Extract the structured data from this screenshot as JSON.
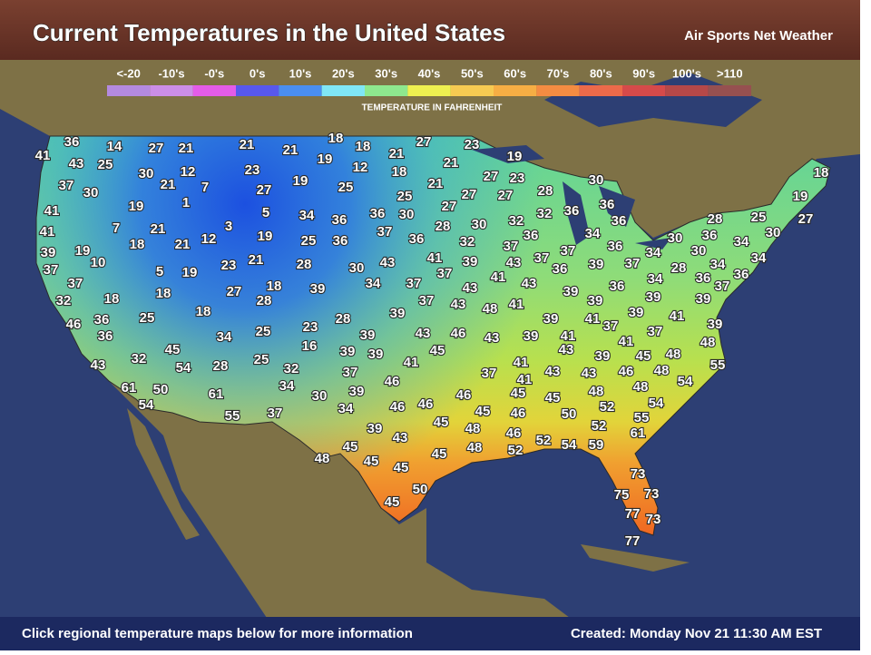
{
  "header": {
    "title": "Current Temperatures in the United States",
    "brand": "Air Sports Net Weather"
  },
  "legend": {
    "title": "TEMPERATURE IN FAHRENHEIT",
    "items": [
      {
        "label": "<-20",
        "color": "#b48ae0"
      },
      {
        "label": "-10's",
        "color": "#cc8ee8"
      },
      {
        "label": "-0's",
        "color": "#e45ce8"
      },
      {
        "label": "0's",
        "color": "#5858ec"
      },
      {
        "label": "10's",
        "color": "#4a8ef0"
      },
      {
        "label": "20's",
        "color": "#80e6f6"
      },
      {
        "label": "30's",
        "color": "#8ee88e"
      },
      {
        "label": "40's",
        "color": "#eef050"
      },
      {
        "label": "50's",
        "color": "#f6ca52"
      },
      {
        "label": "60's",
        "color": "#f6ae44"
      },
      {
        "label": "70's",
        "color": "#f48c42"
      },
      {
        "label": "80's",
        "color": "#ec6a4a"
      },
      {
        "label": "90's",
        "color": "#d64a4a"
      },
      {
        "label": "100's",
        "color": "#b64848"
      },
      {
        "label": ">110",
        "color": "#965050"
      }
    ]
  },
  "map": {
    "temperatures": [
      41,
      36,
      14,
      27,
      21,
      21,
      21,
      18,
      18,
      21,
      27,
      23,
      19,
      43,
      25,
      30,
      12,
      23,
      19,
      12,
      18,
      21,
      37,
      30,
      21,
      7,
      27,
      19,
      25,
      21,
      27,
      23,
      30,
      18,
      41,
      19,
      1,
      5,
      34,
      36,
      36,
      30,
      25,
      27,
      27,
      27,
      28,
      36,
      19,
      41,
      7,
      21,
      3,
      12,
      19,
      25,
      36,
      37,
      36,
      28,
      30,
      32,
      32,
      36,
      36,
      28,
      25,
      27,
      39,
      19,
      18,
      21,
      32,
      37,
      36,
      34,
      36,
      30,
      36,
      30,
      34,
      37,
      10,
      21,
      23,
      28,
      30,
      43,
      41,
      39,
      43,
      37,
      37,
      39,
      37,
      34,
      30,
      34,
      28,
      5,
      19,
      37,
      34,
      37,
      37,
      41,
      43,
      36,
      34,
      36,
      36,
      34,
      18,
      27,
      18,
      39,
      28,
      43,
      39,
      36,
      39,
      37,
      32,
      18,
      37,
      43,
      48,
      41,
      39,
      39,
      46,
      36,
      25,
      18,
      39,
      28,
      39,
      41,
      37,
      39,
      41,
      39,
      36,
      34,
      25,
      23,
      39,
      43,
      46,
      43,
      39,
      41,
      41,
      37,
      48,
      32,
      45,
      16,
      39,
      39,
      45,
      43,
      39,
      45,
      48,
      43,
      54,
      28,
      25,
      32,
      37,
      41,
      41,
      55,
      37,
      41,
      43,
      43,
      46,
      48,
      54,
      61,
      50,
      61,
      34,
      30,
      39,
      46,
      45,
      45,
      48,
      48,
      54,
      34,
      46,
      46,
      46,
      52,
      54,
      55,
      37,
      45,
      46,
      50,
      55,
      39,
      45,
      48,
      52,
      61,
      45,
      43,
      45,
      48,
      46,
      52,
      52,
      54,
      59,
      48,
      45,
      45,
      73,
      50,
      75,
      73,
      45,
      77,
      73,
      77
    ]
  },
  "footer": {
    "left": "Click regional temperature maps below for more information",
    "right": "Created: Monday Nov 21 11:30 AM EST"
  }
}
